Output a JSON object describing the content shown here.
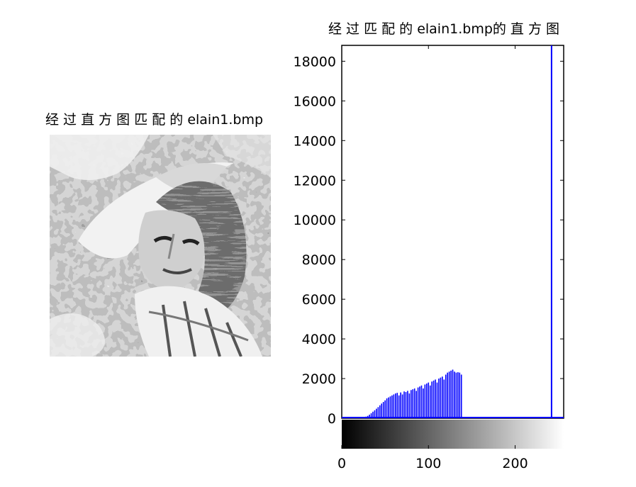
{
  "figure": {
    "left_title": "经 过 直 方 图 匹 配 的 elain1.bmp",
    "right_title": "经 过 匹 配 的 elain1.bmp的 直 方 图"
  },
  "chart_data": {
    "type": "bar",
    "title": "经 过 匹 配 的 elain1.bmp的 直 方 图",
    "xlabel": "",
    "ylabel": "",
    "xlim": [
      0,
      256
    ],
    "ylim": [
      0,
      18800
    ],
    "xticks": [
      0,
      100,
      200
    ],
    "yticks": [
      0,
      2000,
      4000,
      6000,
      8000,
      10000,
      12000,
      14000,
      16000,
      18000
    ],
    "bar_color": "#0000ff",
    "colorbar": "grayscale 0-255",
    "bins_x": [
      24,
      26,
      28,
      30,
      32,
      34,
      36,
      38,
      40,
      42,
      44,
      46,
      48,
      50,
      52,
      54,
      56,
      58,
      60,
      62,
      64,
      66,
      68,
      70,
      72,
      74,
      76,
      78,
      80,
      82,
      84,
      86,
      88,
      90,
      92,
      94,
      96,
      98,
      100,
      102,
      104,
      106,
      108,
      110,
      112,
      114,
      116,
      118,
      120,
      122,
      124,
      126,
      128,
      130,
      132,
      134,
      136,
      138,
      242
    ],
    "values": [
      30,
      50,
      80,
      120,
      180,
      250,
      330,
      400,
      480,
      560,
      650,
      740,
      820,
      900,
      1000,
      1050,
      1100,
      1150,
      1200,
      1250,
      1280,
      1150,
      1300,
      1200,
      1350,
      1320,
      1380,
      1250,
      1420,
      1460,
      1500,
      1380,
      1550,
      1600,
      1650,
      1500,
      1700,
      1750,
      1800,
      1650,
      1850,
      1900,
      1950,
      1800,
      2000,
      2050,
      2100,
      1950,
      2200,
      2300,
      2350,
      2400,
      2450,
      2350,
      2300,
      2320,
      2300,
      2200,
      18800
    ]
  }
}
